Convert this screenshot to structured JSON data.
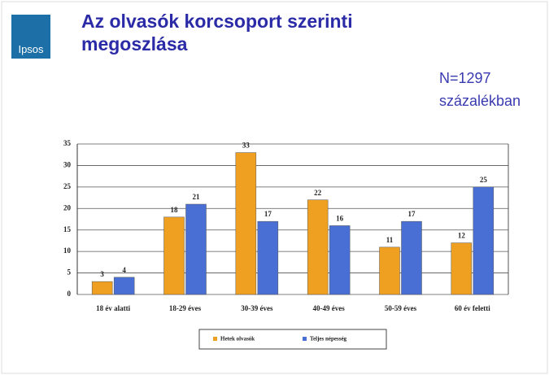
{
  "logo": "Ipsos",
  "chart_data": {
    "type": "bar",
    "title": "Az olvasók korcsoport szerinti megoszlása",
    "subtitle": [
      "N=1297",
      "százalékban"
    ],
    "categories": [
      "18 év alatti",
      "18-29 éves",
      "30-39 éves",
      "40-49 éves",
      "50-59 éves",
      "60 év feletti"
    ],
    "series": [
      {
        "name": "Hetek olvasók",
        "color": "#f0a020",
        "values": [
          3,
          18,
          33,
          22,
          11,
          12
        ]
      },
      {
        "name": "Teljes népesség",
        "color": "#4a6fd4",
        "values": [
          4,
          21,
          17,
          16,
          17,
          25
        ]
      }
    ],
    "ylim": [
      0,
      35
    ],
    "yticks": [
      0,
      5,
      10,
      15,
      20,
      25,
      30,
      35
    ],
    "grid": true,
    "legend": "bottom"
  }
}
